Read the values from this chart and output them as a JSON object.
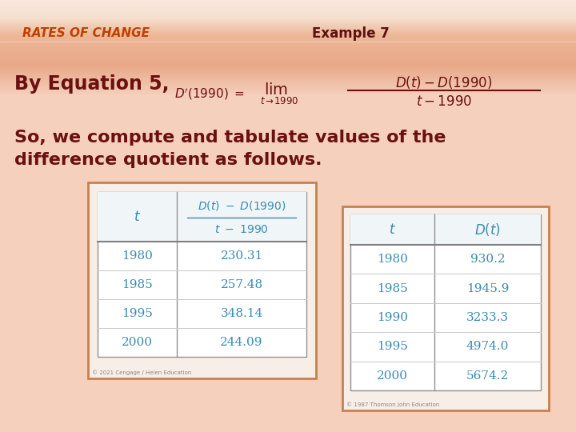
{
  "title_left": "RATES OF CHANGE",
  "title_right": "Example 7",
  "title_color": "#C04000",
  "title_right_color": "#5C1010",
  "bg_top_color": "#F8DDD0",
  "bg_band_color": "#E8A888",
  "bg_main_color": "#F5D5C0",
  "text_color": "#6B1010",
  "table_text_color": "#3A8BB0",
  "table_header_color": "#3A8BB0",
  "table1_years": [
    "1980",
    "1985",
    "1995",
    "2000"
  ],
  "table1_values": [
    "230.31",
    "257.48",
    "348.14",
    "244.09"
  ],
  "table2_years": [
    "1980",
    "1985",
    "1990",
    "1995",
    "2000"
  ],
  "table2_values": [
    "930.2",
    "1945.9",
    "3233.3",
    "4974.0",
    "5674.2"
  ],
  "eq_text": "By Equation 5,",
  "body_text1": "So, we compute and tabulate values of the",
  "body_text2": "difference quotient as follows.",
  "figw": 7.2,
  "figh": 5.4,
  "dpi": 100
}
